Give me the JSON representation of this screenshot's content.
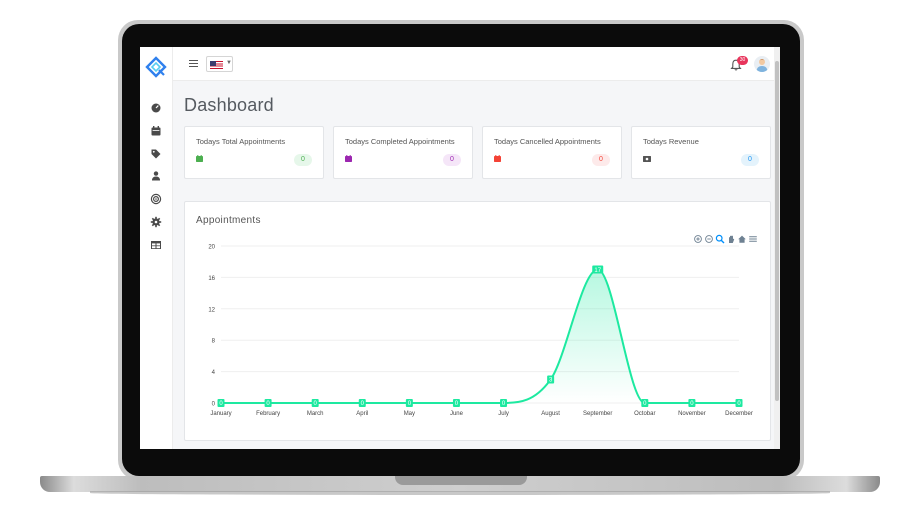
{
  "topbar": {
    "notifications_badge": "30"
  },
  "page": {
    "title": "Dashboard"
  },
  "stats": [
    {
      "title": "Todays Total Appointments",
      "value": "0",
      "icon_color": "#4caf50",
      "badge_bg": "#e6f7ea",
      "badge_color": "#4caf50"
    },
    {
      "title": "Todays Completed Appointments",
      "value": "0",
      "icon_color": "#9c27b0",
      "badge_bg": "#f5e6f8",
      "badge_color": "#9c27b0"
    },
    {
      "title": "Todays Cancelled Appointments",
      "value": "0",
      "icon_color": "#f44336",
      "badge_bg": "#fdeaea",
      "badge_color": "#f44336"
    },
    {
      "title": "Todays Revenue",
      "value": "0",
      "icon_color": "#555555",
      "badge_bg": "#e4f3fc",
      "badge_color": "#2196f3"
    }
  ],
  "chart": {
    "title": "Appointments"
  },
  "chart_data": {
    "type": "area",
    "title": "Appointments",
    "categories": [
      "January",
      "February",
      "March",
      "April",
      "May",
      "June",
      "July",
      "August",
      "September",
      "Octobar",
      "November",
      "December"
    ],
    "series": [
      {
        "values": [
          0,
          0,
          0,
          0,
          0,
          0,
          0,
          3,
          17,
          0,
          0,
          0
        ],
        "color": "#1de9a0"
      }
    ],
    "ylim": [
      0,
      20
    ],
    "yticks": [
      0,
      4,
      8,
      12,
      16,
      20
    ],
    "grid": true,
    "data_labels": true,
    "smooth": true
  },
  "colors": {
    "accent": "#1de9a0",
    "brand": "#2f80ed"
  }
}
